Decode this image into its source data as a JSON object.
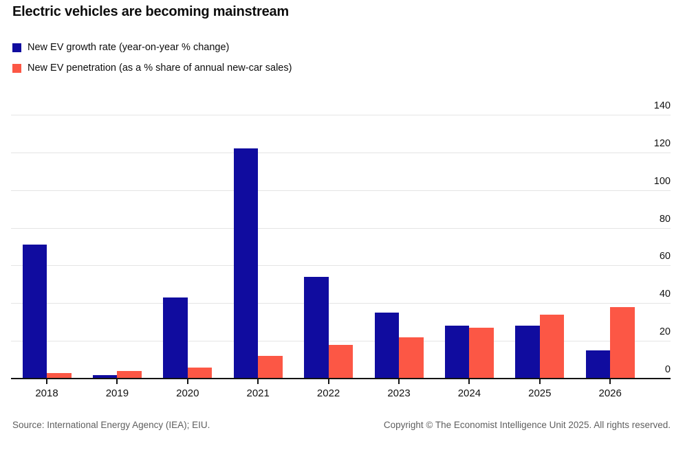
{
  "header": {
    "title": "Electric vehicles are becoming mainstream"
  },
  "legend": [
    {
      "label": "New EV growth rate (year-on-year % change)",
      "color": "#100c9f",
      "swatch_icon": "square-swatch-icon"
    },
    {
      "label": "New EV penetration (as a % share of annual new-car sales)",
      "color": "#fc5745",
      "swatch_icon": "square-swatch-icon"
    }
  ],
  "chart_data": {
    "type": "bar",
    "title": "Electric vehicles are becoming mainstream",
    "categories": [
      "2018",
      "2019",
      "2020",
      "2021",
      "2022",
      "2023",
      "2024",
      "2025",
      "2026"
    ],
    "series": [
      {
        "name": "New EV growth rate (year-on-year % change)",
        "slug": "growth",
        "color": "#100c9f",
        "values": [
          71,
          2,
          43,
          122,
          54,
          35,
          28,
          28,
          15
        ]
      },
      {
        "name": "New EV penetration (as a % share of annual new-car sales)",
        "slug": "penetration",
        "color": "#fc5745",
        "values": [
          3,
          4,
          6,
          12,
          18,
          22,
          27,
          34,
          38
        ]
      }
    ],
    "xlabel": "",
    "ylabel": "",
    "ylim": [
      0,
      140
    ],
    "yticks": [
      0,
      20,
      40,
      60,
      80,
      100,
      120,
      140
    ],
    "grid": true,
    "legend_position": "top-left",
    "y_axis_side": "right"
  },
  "footer": {
    "source": "Source: International Energy Agency (IEA); EIU.",
    "copyright": "Copyright © The Economist Intelligence Unit 2025. All rights reserved."
  },
  "colors": {
    "background": "#ffffff",
    "grid": "#e4e4e4",
    "axis": "#121212",
    "text": "#0d0d0d",
    "muted_text": "#5e5e5e"
  }
}
